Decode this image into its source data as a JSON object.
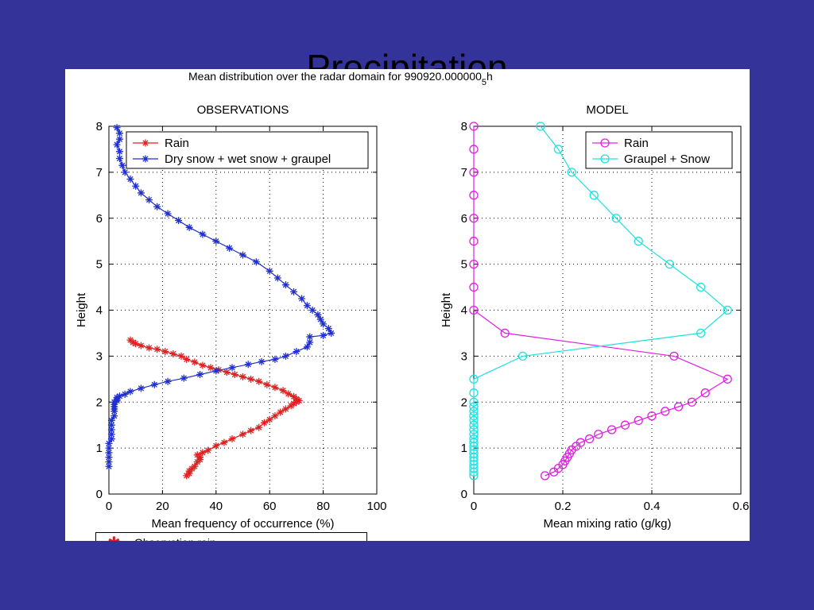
{
  "slide": {
    "title": "Precipitation"
  },
  "figure": {
    "suptitle": "Mean distribution over the radar domain for 990920.000000",
    "suptitle_sub": "5",
    "suptitle_end": "h",
    "background": "#333399"
  },
  "below_legend": {
    "label": "Observation rain",
    "marker_color": "#e02020"
  },
  "chart_data": [
    {
      "type": "line",
      "title": "OBSERVATIONS",
      "xlabel": "Mean frequency of occurrence (%)",
      "ylabel": "Height",
      "xlim": [
        0,
        100
      ],
      "ylim": [
        0,
        8
      ],
      "xticks": [
        0,
        20,
        40,
        60,
        80,
        100
      ],
      "yticks": [
        0,
        1,
        2,
        3,
        4,
        5,
        6,
        7,
        8
      ],
      "grid": true,
      "legend_position": "top-right",
      "marker": "*",
      "series": [
        {
          "name": "Rain",
          "color": "#e02020",
          "x": [
            29,
            30,
            30,
            31,
            32,
            33,
            34,
            34,
            33,
            35,
            37,
            40,
            43,
            46,
            50,
            53,
            56,
            58,
            60,
            62,
            64,
            66,
            68,
            69,
            70,
            71,
            70,
            69,
            67,
            65,
            62,
            59,
            56,
            53,
            50,
            47,
            44,
            41,
            38,
            35,
            32,
            29,
            27,
            24,
            21,
            18,
            15,
            12,
            10,
            9,
            8
          ],
          "y": [
            0.4,
            0.45,
            0.5,
            0.55,
            0.6,
            0.7,
            0.75,
            0.8,
            0.85,
            0.9,
            0.95,
            1.05,
            1.12,
            1.2,
            1.3,
            1.38,
            1.45,
            1.55,
            1.62,
            1.7,
            1.78,
            1.85,
            1.92,
            1.97,
            2.0,
            2.03,
            2.07,
            2.12,
            2.18,
            2.25,
            2.32,
            2.38,
            2.45,
            2.5,
            2.55,
            2.6,
            2.65,
            2.7,
            2.75,
            2.8,
            2.87,
            2.93,
            3.0,
            3.05,
            3.1,
            3.15,
            3.18,
            3.23,
            3.27,
            3.3,
            3.35
          ]
        },
        {
          "name": "Dry snow + wet snow + graupel",
          "color": "#1f2fd0",
          "x": [
            0,
            0,
            0,
            0,
            0,
            0,
            1,
            1,
            1,
            1,
            1,
            2,
            2,
            2,
            2,
            2,
            2,
            3,
            3,
            3,
            4,
            6,
            8,
            12,
            17,
            22,
            28,
            34,
            40,
            46,
            52,
            57,
            62,
            66,
            70,
            74,
            75,
            75,
            80,
            83,
            82,
            80,
            79,
            78,
            76,
            74,
            72,
            69,
            66,
            63,
            60,
            55,
            50,
            45,
            40,
            35,
            30,
            26,
            22,
            18,
            15,
            12,
            10,
            8,
            6,
            5,
            4,
            4,
            3,
            4,
            4,
            3
          ],
          "y": [
            0.6,
            0.7,
            0.8,
            0.9,
            1.0,
            1.1,
            1.2,
            1.3,
            1.4,
            1.5,
            1.6,
            1.7,
            1.8,
            1.85,
            1.9,
            1.95,
            2.0,
            2.03,
            2.06,
            2.1,
            2.13,
            2.17,
            2.23,
            2.3,
            2.38,
            2.45,
            2.52,
            2.6,
            2.68,
            2.75,
            2.82,
            2.88,
            2.93,
            3.0,
            3.1,
            3.2,
            3.3,
            3.42,
            3.45,
            3.5,
            3.6,
            3.7,
            3.8,
            3.9,
            4.0,
            4.1,
            4.25,
            4.4,
            4.55,
            4.7,
            4.85,
            5.05,
            5.2,
            5.35,
            5.5,
            5.65,
            5.8,
            5.95,
            6.1,
            6.25,
            6.4,
            6.55,
            6.7,
            6.85,
            7.0,
            7.15,
            7.3,
            7.45,
            7.6,
            7.72,
            7.85,
            7.97
          ]
        }
      ]
    },
    {
      "type": "line",
      "title": "MODEL",
      "xlabel": "Mean mixing ratio (g/kg)",
      "ylabel": "Height",
      "xlim": [
        0,
        0.6
      ],
      "ylim": [
        0,
        8
      ],
      "xticks": [
        0,
        0.2,
        0.4,
        0.6
      ],
      "xtick_labels": [
        "0",
        "0.2",
        "0.4",
        "0.6"
      ],
      "yticks": [
        0,
        1,
        2,
        3,
        4,
        5,
        6,
        7,
        8
      ],
      "grid": true,
      "legend_position": "top-right",
      "marker": "o",
      "series": [
        {
          "name": "Rain",
          "color": "#e020e0",
          "x": [
            0.16,
            0.18,
            0.19,
            0.2,
            0.205,
            0.21,
            0.215,
            0.22,
            0.23,
            0.24,
            0.26,
            0.28,
            0.31,
            0.34,
            0.37,
            0.4,
            0.43,
            0.46,
            0.49,
            0.52,
            0.57,
            0.45,
            0.07,
            0,
            0,
            0,
            0,
            0,
            0,
            0,
            0,
            0
          ],
          "y": [
            0.4,
            0.48,
            0.56,
            0.64,
            0.72,
            0.8,
            0.88,
            0.96,
            1.04,
            1.12,
            1.2,
            1.3,
            1.4,
            1.5,
            1.6,
            1.7,
            1.8,
            1.9,
            2.0,
            2.2,
            2.5,
            3.0,
            3.5,
            4.0,
            4.5,
            5.0,
            5.5,
            6.0,
            6.5,
            7.0,
            7.5,
            8.0
          ]
        },
        {
          "name": "Graupel + Snow",
          "color": "#20e0e0",
          "x": [
            0,
            0,
            0,
            0,
            0,
            0,
            0,
            0,
            0,
            0,
            0,
            0,
            0,
            0,
            0,
            0,
            0,
            0,
            0,
            0,
            0,
            0.11,
            0.51,
            0.57,
            0.51,
            0.44,
            0.37,
            0.32,
            0.27,
            0.22,
            0.19,
            0.15
          ],
          "y": [
            0.4,
            0.48,
            0.56,
            0.64,
            0.72,
            0.8,
            0.88,
            0.96,
            1.04,
            1.12,
            1.2,
            1.3,
            1.4,
            1.5,
            1.6,
            1.7,
            1.8,
            1.9,
            2.0,
            2.2,
            2.5,
            3.0,
            3.5,
            4.0,
            4.5,
            5.0,
            5.5,
            6.0,
            6.5,
            7.0,
            7.5,
            8.0
          ]
        }
      ]
    }
  ]
}
